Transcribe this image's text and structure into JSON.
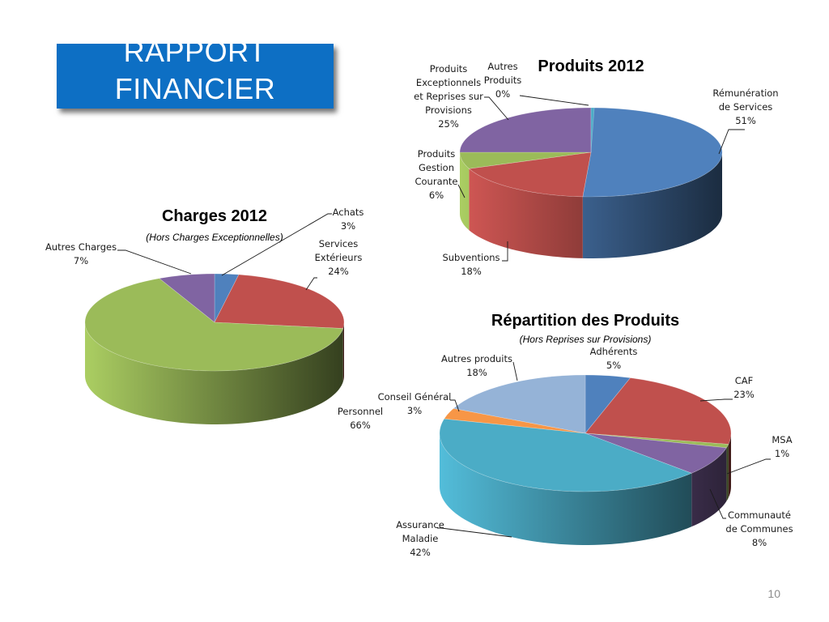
{
  "slide": {
    "title_lines": [
      "RAPPORT",
      "FINANCIER"
    ],
    "page_number": "10"
  },
  "chart_data": [
    {
      "type": "pie",
      "title": "Produits 2012",
      "subtitle": "",
      "categories": [
        "Rémunération de Services",
        "Subventions",
        "Produits Gestion Courante",
        "Produits Exceptionnels et Reprises sur Provisions",
        "Autres Produits"
      ],
      "values": [
        51,
        18,
        6,
        25,
        0
      ],
      "colors": [
        "#4f81bd",
        "#c0504d",
        "#9bbb59",
        "#8064a2",
        "#4bacc6"
      ],
      "legend": "none",
      "data_labels": [
        {
          "lines": [
            "Rémunération",
            "de Services"
          ],
          "pct": "51%"
        },
        {
          "lines": [
            "Subventions"
          ],
          "pct": "18%"
        },
        {
          "lines": [
            "Produits",
            "Gestion",
            "Courante"
          ],
          "pct": "6%"
        },
        {
          "lines": [
            "Produits",
            "Exceptionnels",
            "et Reprises sur",
            "Provisions"
          ],
          "pct": "25%"
        },
        {
          "lines": [
            "Autres",
            "Produits"
          ],
          "pct": "0%"
        }
      ]
    },
    {
      "type": "pie",
      "title": "Charges 2012",
      "subtitle": "(Hors Charges Exceptionnelles)",
      "categories": [
        "Achats",
        "Services Extérieurs",
        "Personnel",
        "Autres Charges"
      ],
      "values": [
        3,
        24,
        66,
        7
      ],
      "colors": [
        "#4f81bd",
        "#c0504d",
        "#9bbb59",
        "#8064a2"
      ],
      "legend": "none",
      "data_labels": [
        {
          "lines": [
            "Achats"
          ],
          "pct": "3%"
        },
        {
          "lines": [
            "Services",
            "Extérieurs"
          ],
          "pct": "24%"
        },
        {
          "lines": [
            "Personnel"
          ],
          "pct": "66%"
        },
        {
          "lines": [
            "Autres Charges"
          ],
          "pct": "7%"
        }
      ]
    },
    {
      "type": "pie",
      "title": "Répartition des Produits",
      "subtitle": "(Hors Reprises sur Provisions)",
      "categories": [
        "Adhérents",
        "CAF",
        "MSA",
        "Communauté de Communes",
        "Assurance Maladie",
        "Conseil Général",
        "Autres produits"
      ],
      "values": [
        5,
        23,
        1,
        8,
        42,
        3,
        18
      ],
      "colors": [
        "#4f81bd",
        "#c0504d",
        "#9bbb59",
        "#8064a2",
        "#4bacc6",
        "#f79646",
        "#95b3d7"
      ],
      "legend": "none",
      "data_labels": [
        {
          "lines": [
            "Adhérents"
          ],
          "pct": "5%"
        },
        {
          "lines": [
            "CAF"
          ],
          "pct": "23%"
        },
        {
          "lines": [
            "MSA"
          ],
          "pct": "1%"
        },
        {
          "lines": [
            "Communauté",
            "de Communes"
          ],
          "pct": "8%"
        },
        {
          "lines": [
            "Assurance",
            "Maladie"
          ],
          "pct": "42%"
        },
        {
          "lines": [
            "Conseil Général"
          ],
          "pct": "3%"
        },
        {
          "lines": [
            "Autres produits"
          ],
          "pct": "18%"
        }
      ]
    }
  ]
}
